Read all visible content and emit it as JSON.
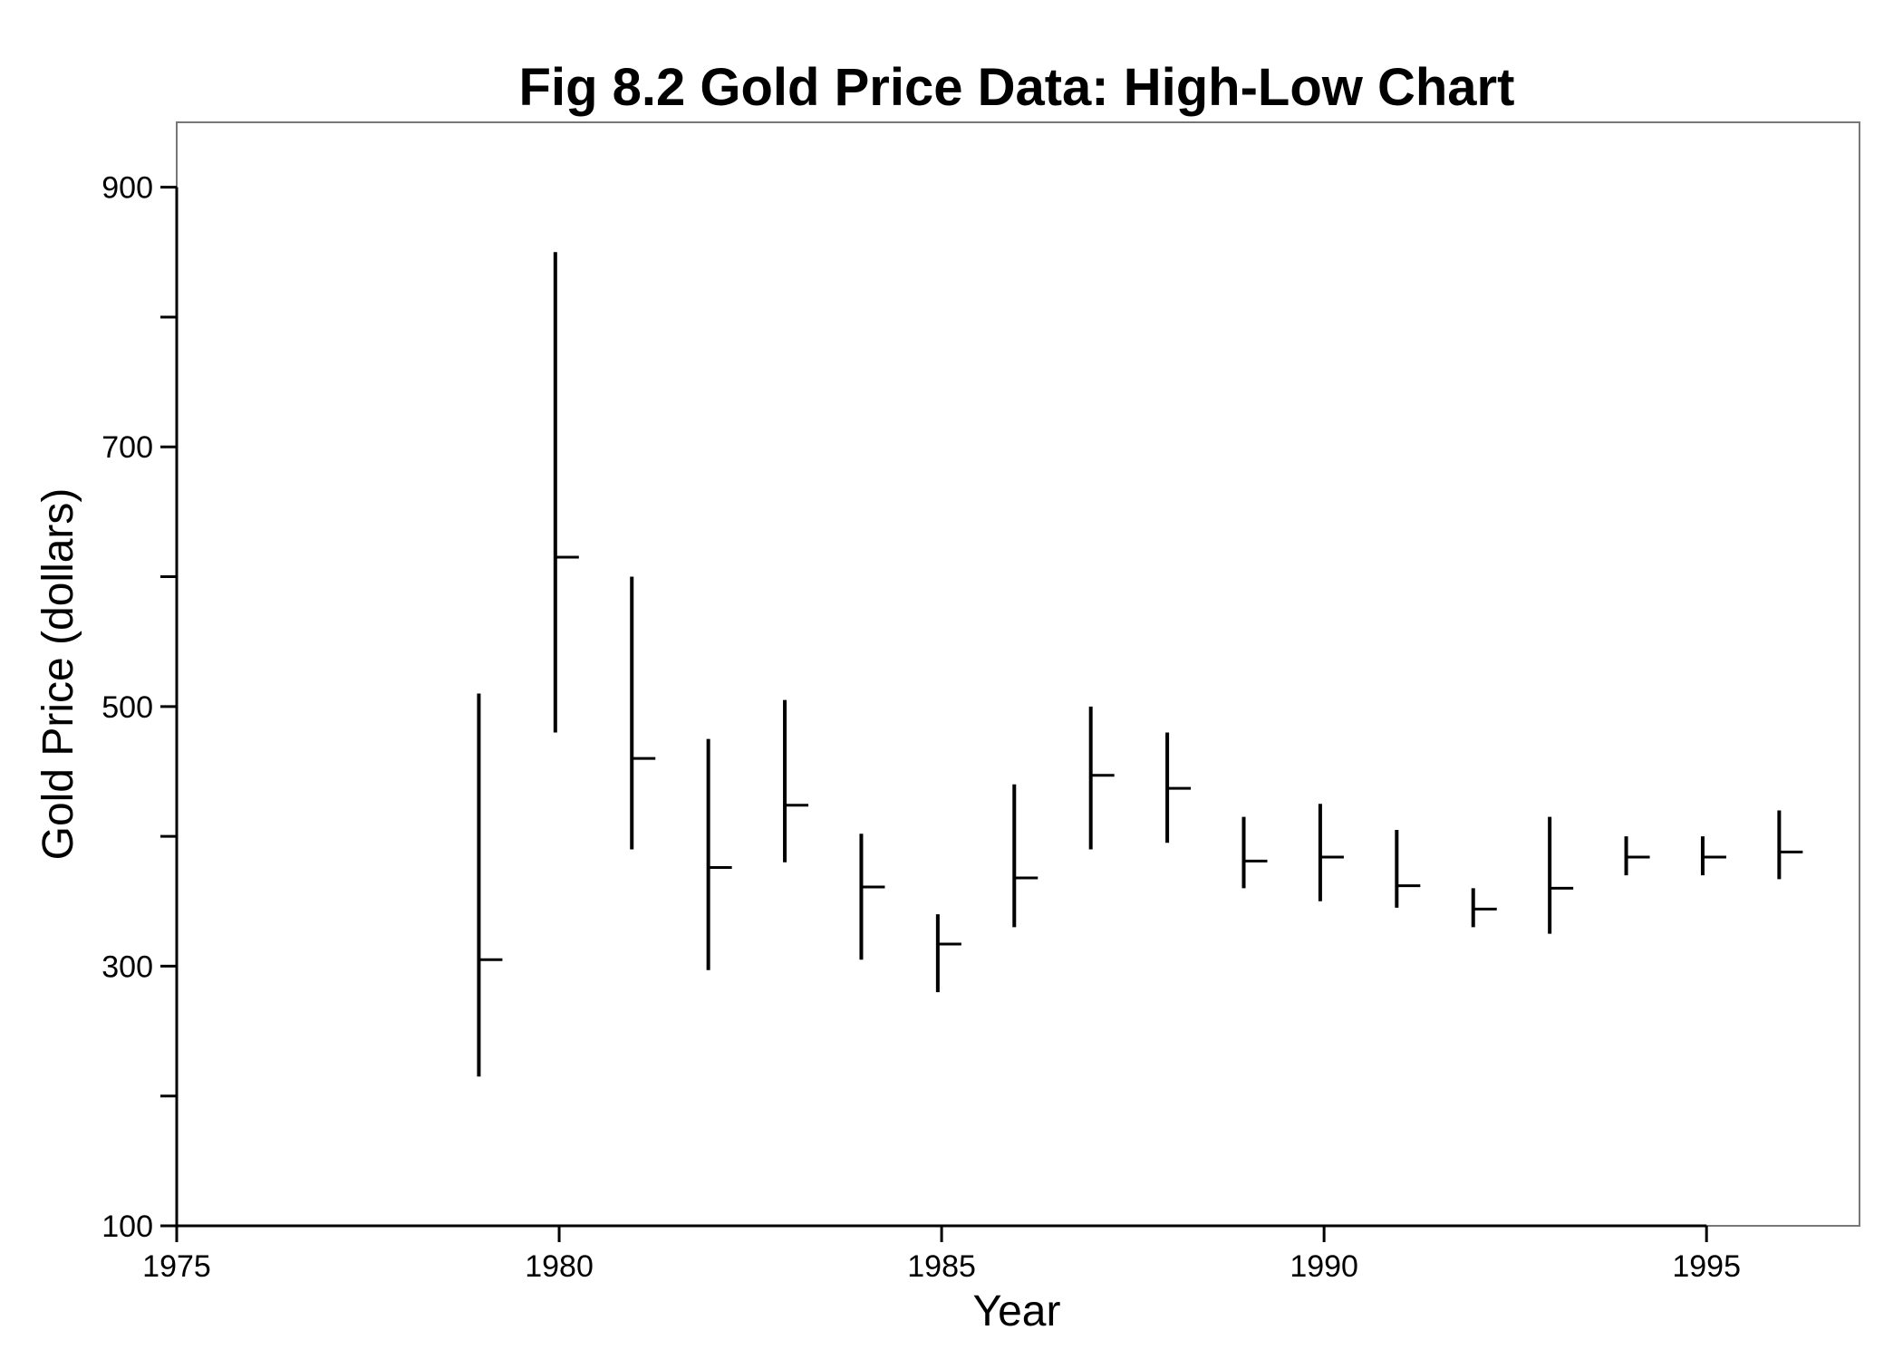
{
  "chart_data": {
    "type": "high-low",
    "title": "Fig 8.2 Gold Price Data: High-Low Chart",
    "xlabel": "Year",
    "ylabel": "Gold Price (dollars)",
    "xlim": [
      1975,
      1997
    ],
    "ylim": [
      100,
      950
    ],
    "x_ticks": [
      1975,
      1980,
      1985,
      1990,
      1995
    ],
    "y_ticks": [
      100,
      200,
      300,
      400,
      500,
      600,
      700,
      800,
      900
    ],
    "y_tick_labels": [
      "100",
      "",
      "300",
      "",
      "500",
      "",
      "700",
      "",
      "900"
    ],
    "grid": false,
    "data": [
      {
        "year": 1979,
        "high": 510,
        "low": 215,
        "close": 305
      },
      {
        "year": 1980,
        "high": 850,
        "low": 480,
        "close": 615
      },
      {
        "year": 1981,
        "high": 600,
        "low": 390,
        "close": 460
      },
      {
        "year": 1982,
        "high": 475,
        "low": 297,
        "close": 376
      },
      {
        "year": 1983,
        "high": 505,
        "low": 380,
        "close": 424
      },
      {
        "year": 1984,
        "high": 402,
        "low": 305,
        "close": 361
      },
      {
        "year": 1985,
        "high": 340,
        "low": 280,
        "close": 317
      },
      {
        "year": 1986,
        "high": 440,
        "low": 330,
        "close": 368
      },
      {
        "year": 1987,
        "high": 500,
        "low": 390,
        "close": 447
      },
      {
        "year": 1988,
        "high": 480,
        "low": 395,
        "close": 437
      },
      {
        "year": 1989,
        "high": 415,
        "low": 360,
        "close": 381
      },
      {
        "year": 1990,
        "high": 425,
        "low": 350,
        "close": 384
      },
      {
        "year": 1991,
        "high": 405,
        "low": 345,
        "close": 362
      },
      {
        "year": 1992,
        "high": 360,
        "low": 330,
        "close": 344
      },
      {
        "year": 1993,
        "high": 415,
        "low": 325,
        "close": 360
      },
      {
        "year": 1994,
        "high": 400,
        "low": 370,
        "close": 384
      },
      {
        "year": 1995,
        "high": 400,
        "low": 370,
        "close": 384
      },
      {
        "year": 1996,
        "high": 420,
        "low": 367,
        "close": 388
      }
    ]
  }
}
